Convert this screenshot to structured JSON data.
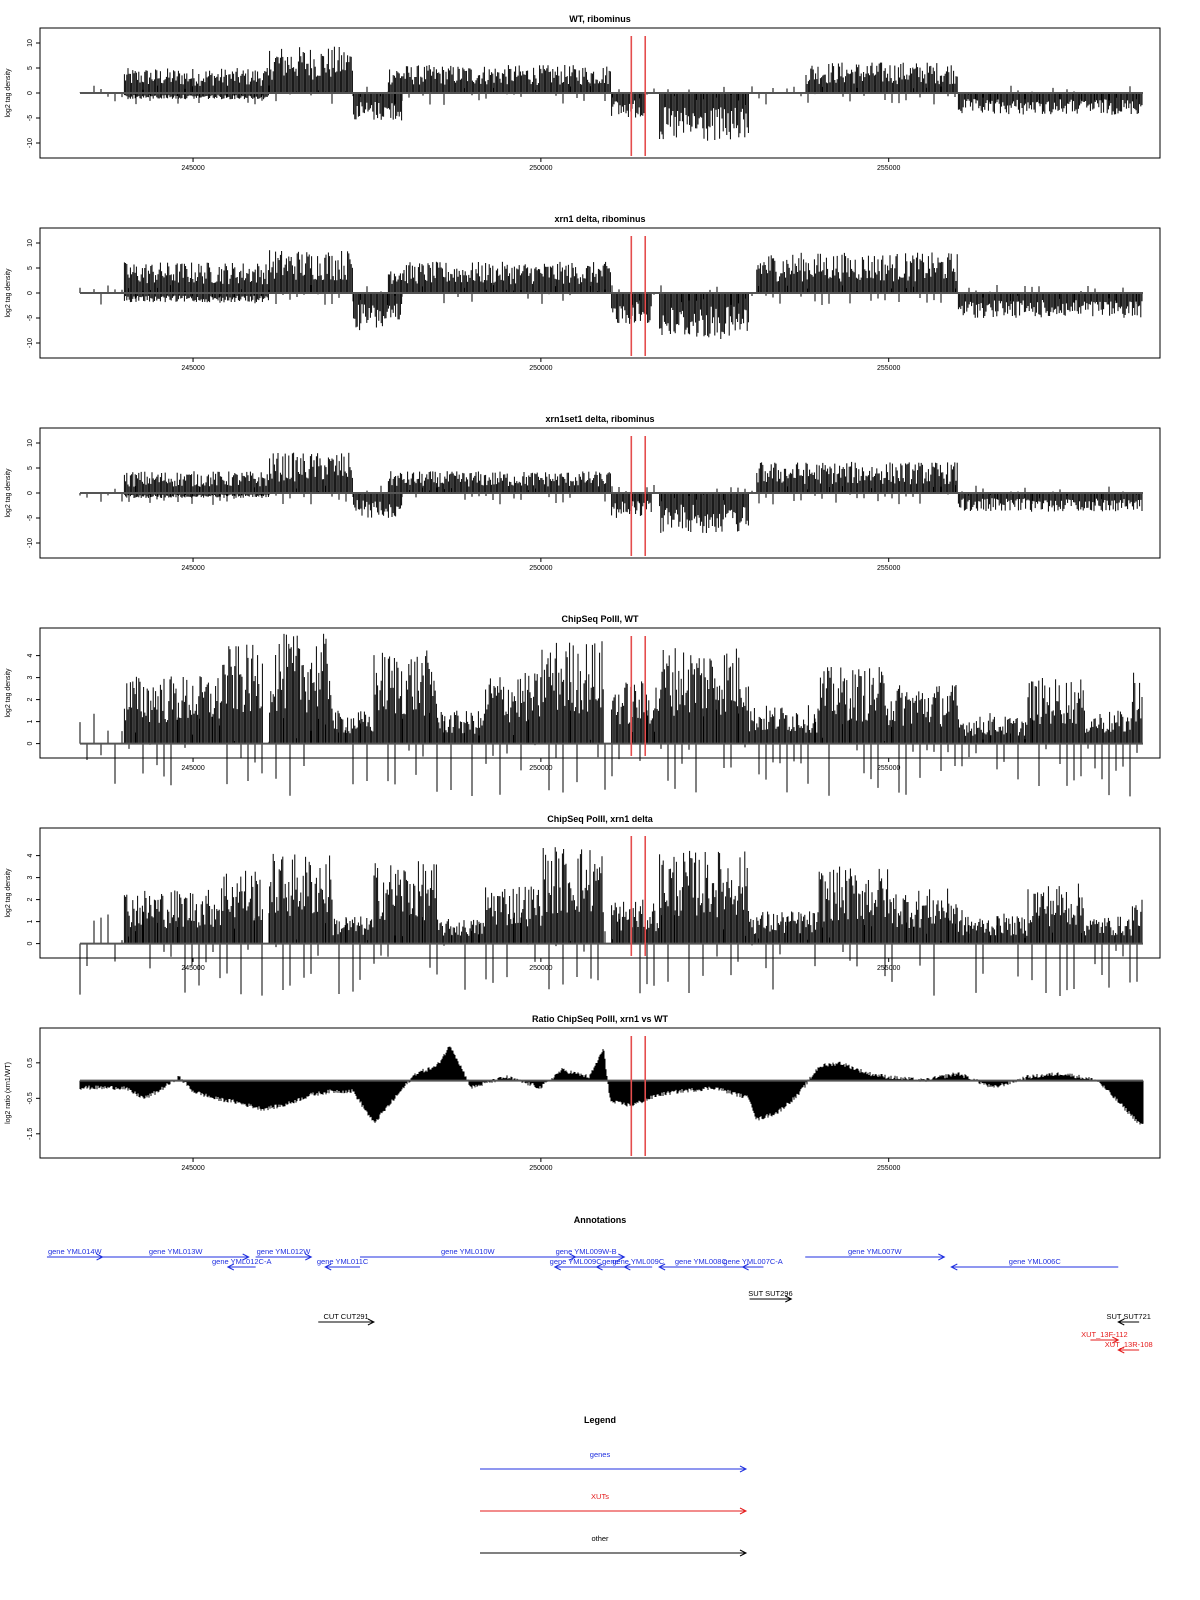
{
  "chart_data": [
    {
      "type": "bar",
      "title": "WT, ribominus",
      "ylabel": "log2 tag density",
      "xlim": [
        242800,
        258900
      ],
      "ylim": [
        -11,
        11
      ],
      "yticks": [
        10,
        5,
        0,
        -5,
        -10
      ],
      "xticks": [
        245000,
        250000,
        255000
      ],
      "series": [
        {
          "strand": "plus",
          "segments": [
            {
              "from": 244000,
              "to": 246100,
              "level": 4.0
            },
            {
              "from": 246100,
              "to": 247300,
              "level": 7.5
            },
            {
              "from": 247800,
              "to": 251000,
              "level": 4.5
            },
            {
              "from": 253800,
              "to": 256000,
              "level": 5.0
            }
          ]
        },
        {
          "strand": "minus",
          "segments": [
            {
              "from": 244000,
              "to": 246100,
              "level": -1.0
            },
            {
              "from": 247300,
              "to": 248000,
              "level": -4.5
            },
            {
              "from": 251000,
              "to": 251500,
              "level": -4.0
            },
            {
              "from": 251700,
              "to": 253000,
              "level": -8.0
            },
            {
              "from": 256000,
              "to": 258900,
              "level": -3.5
            }
          ]
        }
      ]
    },
    {
      "type": "bar",
      "title": "xrn1 delta, ribominus",
      "ylabel": "log2 tag density",
      "xlim": [
        242800,
        258900
      ],
      "ylim": [
        -11,
        11
      ],
      "yticks": [
        10,
        5,
        0,
        -5,
        -10
      ],
      "xticks": [
        245000,
        250000,
        255000
      ],
      "series": [
        {
          "strand": "plus",
          "segments": [
            {
              "from": 244000,
              "to": 246100,
              "level": 5.0
            },
            {
              "from": 246100,
              "to": 247300,
              "level": 7.0
            },
            {
              "from": 247800,
              "to": 251000,
              "level": 5.0
            },
            {
              "from": 253100,
              "to": 256000,
              "level": 6.5
            }
          ]
        },
        {
          "strand": "minus",
          "segments": [
            {
              "from": 244000,
              "to": 246100,
              "level": -1.5
            },
            {
              "from": 247300,
              "to": 248000,
              "level": -6.0
            },
            {
              "from": 251000,
              "to": 251600,
              "level": -5.0
            },
            {
              "from": 251700,
              "to": 253000,
              "level": -7.5
            },
            {
              "from": 256000,
              "to": 258900,
              "level": -4.0
            }
          ]
        }
      ]
    },
    {
      "type": "bar",
      "title": "xrn1set1 delta, ribominus",
      "ylabel": "log2 tag density",
      "xlim": [
        242800,
        258900
      ],
      "ylim": [
        -11,
        11
      ],
      "yticks": [
        10,
        5,
        0,
        -5,
        -10
      ],
      "xticks": [
        245000,
        250000,
        255000
      ],
      "series": [
        {
          "strand": "plus",
          "segments": [
            {
              "from": 244000,
              "to": 246100,
              "level": 3.5
            },
            {
              "from": 246100,
              "to": 247300,
              "level": 6.5
            },
            {
              "from": 247800,
              "to": 251000,
              "level": 3.5
            },
            {
              "from": 253100,
              "to": 256000,
              "level": 5.0
            }
          ]
        },
        {
          "strand": "minus",
          "segments": [
            {
              "from": 244000,
              "to": 246100,
              "level": -0.8
            },
            {
              "from": 247300,
              "to": 248000,
              "level": -4.0
            },
            {
              "from": 251000,
              "to": 251600,
              "level": -4.0
            },
            {
              "from": 251700,
              "to": 253000,
              "level": -6.5
            },
            {
              "from": 256000,
              "to": 258900,
              "level": -3.0
            }
          ]
        }
      ]
    },
    {
      "type": "bar",
      "title": "ChipSeq PolII, WT",
      "ylabel": "log2 tag density",
      "xlim": [
        242800,
        258900
      ],
      "ylim": [
        -0.2,
        4.8
      ],
      "yticks": [
        4,
        3,
        2,
        1,
        0
      ],
      "xticks": [
        245000,
        250000,
        255000
      ],
      "series": [
        {
          "strand": "plus",
          "segments": [
            {
              "from": 244000,
              "to": 245400,
              "level": 2.5
            },
            {
              "from": 245400,
              "to": 246000,
              "level": 3.6
            },
            {
              "from": 246100,
              "to": 247000,
              "level": 4.0
            },
            {
              "from": 247000,
              "to": 247600,
              "level": 1.2
            },
            {
              "from": 247600,
              "to": 248500,
              "level": 3.4
            },
            {
              "from": 248500,
              "to": 249200,
              "level": 1.2
            },
            {
              "from": 249200,
              "to": 250000,
              "level": 2.6
            },
            {
              "from": 250000,
              "to": 250900,
              "level": 3.8
            },
            {
              "from": 251000,
              "to": 251700,
              "level": 2.3
            },
            {
              "from": 251700,
              "to": 253000,
              "level": 3.6
            },
            {
              "from": 253000,
              "to": 254000,
              "level": 1.4
            },
            {
              "from": 254000,
              "to": 255000,
              "level": 2.8
            },
            {
              "from": 255000,
              "to": 256000,
              "level": 2.2
            },
            {
              "from": 256000,
              "to": 257000,
              "level": 1.0
            },
            {
              "from": 257000,
              "to": 257800,
              "level": 2.4
            },
            {
              "from": 257800,
              "to": 258500,
              "level": 1.2
            },
            {
              "from": 258500,
              "to": 258900,
              "level": 2.8
            }
          ]
        }
      ]
    },
    {
      "type": "bar",
      "title": "ChipSeq PolII, xrn1 delta",
      "ylabel": "log2 tag density",
      "xlim": [
        242800,
        258900
      ],
      "ylim": [
        -0.2,
        4.8
      ],
      "yticks": [
        4,
        3,
        2,
        1,
        0
      ],
      "xticks": [
        245000,
        250000,
        255000
      ],
      "series": [
        {
          "strand": "plus",
          "segments": [
            {
              "from": 244000,
              "to": 245400,
              "level": 2.0
            },
            {
              "from": 245400,
              "to": 246000,
              "level": 2.8
            },
            {
              "from": 246100,
              "to": 247000,
              "level": 3.3
            },
            {
              "from": 247000,
              "to": 247600,
              "level": 1.0
            },
            {
              "from": 247600,
              "to": 248500,
              "level": 3.0
            },
            {
              "from": 248500,
              "to": 249200,
              "level": 0.9
            },
            {
              "from": 249200,
              "to": 250000,
              "level": 2.2
            },
            {
              "from": 250000,
              "to": 250900,
              "level": 3.6
            },
            {
              "from": 251000,
              "to": 251700,
              "level": 1.6
            },
            {
              "from": 251700,
              "to": 253000,
              "level": 3.4
            },
            {
              "from": 253000,
              "to": 254000,
              "level": 1.2
            },
            {
              "from": 254000,
              "to": 255000,
              "level": 2.8
            },
            {
              "from": 255000,
              "to": 256000,
              "level": 2.0
            },
            {
              "from": 256000,
              "to": 257000,
              "level": 1.0
            },
            {
              "from": 257000,
              "to": 257800,
              "level": 2.2
            },
            {
              "from": 257800,
              "to": 258500,
              "level": 1.0
            },
            {
              "from": 258500,
              "to": 258900,
              "level": 1.6
            }
          ]
        }
      ]
    },
    {
      "type": "area",
      "title": "Ratio ChipSeq PolII, xrn1 vs WT",
      "ylabel": "log2 ratio (xrn1/WT)",
      "xlim": [
        242800,
        258900
      ],
      "ylim": [
        -1.9,
        1.2
      ],
      "yticks": [
        0.5,
        -0.5,
        -1.5
      ],
      "xticks": [
        245000,
        250000,
        255000
      ],
      "baseline": 0,
      "x": [
        244000,
        244300,
        244500,
        244800,
        245000,
        245300,
        245600,
        246000,
        246300,
        246700,
        247000,
        247300,
        247600,
        247900,
        248200,
        248500,
        248700,
        249000,
        249500,
        250000,
        250300,
        250700,
        250900,
        251000,
        251300,
        251700,
        252000,
        252500,
        253000,
        253100,
        253400,
        253700,
        254000,
        254300,
        254700,
        255000,
        255500,
        256000,
        256500,
        257000,
        257500,
        258000,
        258300,
        258600,
        258900
      ],
      "y": [
        -0.2,
        -0.5,
        -0.3,
        0.1,
        -0.3,
        -0.5,
        -0.6,
        -0.8,
        -0.7,
        -0.4,
        -0.3,
        -0.3,
        -1.2,
        -0.5,
        0.2,
        0.4,
        1.0,
        -0.2,
        0.1,
        -0.2,
        0.3,
        0.1,
        0.9,
        -0.6,
        -0.7,
        -0.4,
        -0.3,
        -0.2,
        -0.5,
        -1.1,
        -0.9,
        -0.4,
        0.4,
        0.5,
        0.2,
        0.1,
        0.0,
        0.2,
        -0.2,
        0.1,
        0.2,
        0.0,
        -0.6,
        -1.2,
        -1.5
      ]
    }
  ],
  "marker_positions": [
    251300,
    251500
  ],
  "colors": {
    "signal": "#000000",
    "marker": "#e44d4d",
    "gene": "#1f2fe0",
    "xut": "#e41a1a",
    "other": "#000000"
  },
  "annotations_title": "Annotations",
  "annotations": {
    "xlim": [
      242800,
      258900
    ],
    "features": [
      {
        "label": "gene YML014W",
        "category": "genes",
        "start": 242900,
        "end": 243700,
        "dir": "right",
        "row": 0
      },
      {
        "label": "gene YML013W",
        "category": "genes",
        "start": 243700,
        "end": 245800,
        "dir": "right",
        "row": 0
      },
      {
        "label": "gene YML012C-A",
        "category": "genes",
        "start": 245500,
        "end": 245900,
        "dir": "left",
        "row": 1
      },
      {
        "label": "gene YML012W",
        "category": "genes",
        "start": 245900,
        "end": 246700,
        "dir": "right",
        "row": 0
      },
      {
        "label": "gene YML011C",
        "category": "genes",
        "start": 246900,
        "end": 247400,
        "dir": "left",
        "row": 1
      },
      {
        "label": "gene YML010W",
        "category": "genes",
        "start": 247400,
        "end": 250500,
        "dir": "right",
        "row": 0
      },
      {
        "label": "gene YML009W-B",
        "category": "genes",
        "start": 250100,
        "end": 251200,
        "dir": "right",
        "row": 0
      },
      {
        "label": "gene YML009C",
        "category": "genes",
        "start": 250200,
        "end": 250800,
        "dir": "left",
        "row": 1
      },
      {
        "label": "gene",
        "category": "genes",
        "start": 250800,
        "end": 251200,
        "dir": "left",
        "row": 1
      },
      {
        "label": "gene YML009C",
        "category": "genes",
        "start": 251200,
        "end": 251600,
        "dir": "left",
        "row": 1
      },
      {
        "label": "gene YML008C",
        "category": "genes",
        "start": 251700,
        "end": 252900,
        "dir": "left",
        "row": 1
      },
      {
        "label": "gene YML007C-A",
        "category": "genes",
        "start": 252900,
        "end": 253200,
        "dir": "left",
        "row": 1
      },
      {
        "label": "gene YML007W",
        "category": "genes",
        "start": 253800,
        "end": 255800,
        "dir": "right",
        "row": 0
      },
      {
        "label": "gene YML006C",
        "category": "genes",
        "start": 255900,
        "end": 258300,
        "dir": "left",
        "row": 1
      },
      {
        "label": "SUT SUT296",
        "category": "other",
        "start": 253000,
        "end": 253600,
        "dir": "right",
        "row": 2
      },
      {
        "label": "CUT CUT291",
        "category": "other",
        "start": 246800,
        "end": 247600,
        "dir": "right",
        "row": 3
      },
      {
        "label": "SUT SUT721",
        "category": "other",
        "start": 258300,
        "end": 258600,
        "dir": "left",
        "row": 3
      },
      {
        "label": "XUT_13F-112",
        "category": "xuts",
        "start": 257900,
        "end": 258300,
        "dir": "right",
        "row": 4
      },
      {
        "label": "XUT_13R-108",
        "category": "xuts",
        "start": 258300,
        "end": 258600,
        "dir": "left",
        "row": 5
      }
    ]
  },
  "legend": {
    "title": "Legend",
    "items": [
      {
        "label": "genes",
        "category": "genes"
      },
      {
        "label": "XUTs",
        "category": "xuts"
      },
      {
        "label": "other",
        "category": "other"
      }
    ]
  }
}
